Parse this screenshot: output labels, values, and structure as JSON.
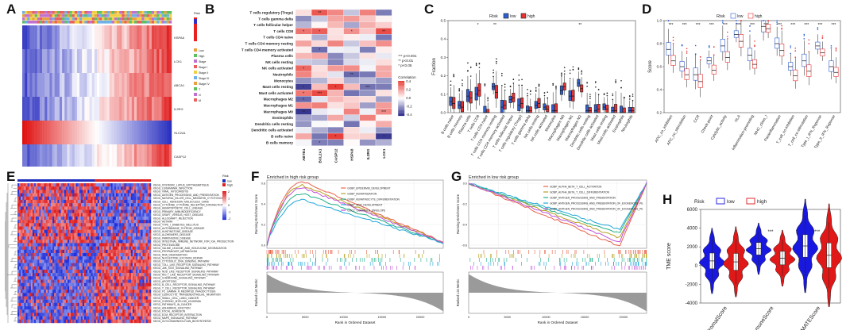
{
  "figure": {
    "panel_labels": [
      "A",
      "B",
      "C",
      "D",
      "E",
      "F",
      "G",
      "H"
    ]
  },
  "panel_a": {
    "row_labels": [
      "HSPA8",
      "LCK1",
      "ABCA1",
      "IL2RG",
      "SLC2A1",
      "CASP12"
    ],
    "legend_labels": [
      "Risk",
      "Low",
      "High",
      "Stage",
      "Stage I",
      "Stage II",
      "Stage III",
      "Stage IV",
      "T",
      "N",
      "M"
    ]
  },
  "panel_b": {
    "rows": [
      "T cells regulatory (Tregs)",
      "T cells gamma delta",
      "T cells follicular helper",
      "T cells CD8",
      "T cells CD4 naive",
      "T cells CD4 memory resting",
      "T cells CD4 memory activated",
      "Plasma cells",
      "NK cells resting",
      "NK cells activated",
      "Neutrophils",
      "Monocytes",
      "Mast cells resting",
      "Mast cells activated",
      "Macrophages M2",
      "Macrophages M1",
      "Macrophages M0",
      "Eosinophils",
      "Dendritic cells resting",
      "Dendritic cells activated",
      "B cells naive",
      "B cells memory"
    ],
    "cols": [
      "ABTB1",
      "BCL2A1",
      "CASP12",
      "HSPA8",
      "IL2RG",
      "LCK1"
    ],
    "sig_legend": [
      "*** p<0.001",
      "** p<0.01",
      "* p<0.05"
    ],
    "colorbar_title": "Correlation",
    "colorbar_ticks": [
      "0.4",
      "0.2",
      "0.0",
      "-0.2",
      "-0.4"
    ],
    "colors": {
      "pos": "#e8403a",
      "neg": "#2a2a8a",
      "mid": "#ffffff"
    }
  },
  "panel_c": {
    "legend_title": "Risk",
    "legend_items": [
      "low",
      "high"
    ],
    "ylabel": "Fraction",
    "yticks": [
      "0.0",
      "0.1",
      "0.2",
      "0.3",
      "0.4",
      "0.5"
    ],
    "categories": [
      "B cells naive",
      "B cells memory",
      "Plasma cells",
      "T cells CD8",
      "T cells CD4 naive",
      "T cells CD4 memory resting",
      "T cells CD4 memory activated",
      "T cells follicular helper",
      "T cells regulatory (Tregs)",
      "T cells gamma delta",
      "NK cells resting",
      "NK cells activated",
      "Monocytes",
      "Macrophages M0",
      "Macrophages M1",
      "Macrophages M2",
      "Dendritic cells resting",
      "Dendritic cells activated",
      "Mast cells resting",
      "Mast cells activated",
      "Eosinophils",
      "Neutrophils"
    ],
    "sig": {
      "3": "*",
      "5": "**",
      "15": "**"
    },
    "low_median": [
      0.06,
      0.04,
      0.09,
      0.1,
      0.0,
      0.14,
      0.03,
      0.07,
      0.04,
      0.01,
      0.04,
      0.03,
      0.01,
      0.12,
      0.09,
      0.16,
      0.01,
      0.01,
      0.03,
      0.01,
      0.0,
      0.01
    ],
    "high_median": [
      0.05,
      0.03,
      0.08,
      0.12,
      0.0,
      0.11,
      0.04,
      0.08,
      0.05,
      0.01,
      0.05,
      0.02,
      0.01,
      0.14,
      0.09,
      0.13,
      0.01,
      0.02,
      0.02,
      0.01,
      0.0,
      0.01
    ],
    "colors": {
      "low": "#2f5fd0",
      "high": "#e83030"
    }
  },
  "panel_d": {
    "legend_title": "Risk",
    "legend_items": [
      "low",
      "high"
    ],
    "ylabel": "Score",
    "yticks": [
      "0.2",
      "0.4",
      "0.6",
      "0.8",
      "1.0"
    ],
    "categories": [
      "APC_co_inhibition",
      "APC_co_stimulation",
      "CCR",
      "Check-point",
      "Cytolytic_activity",
      "HLA",
      "Inflammation-promoting",
      "MHC_class_I",
      "Parainflammation",
      "T_cell_co-inhibition",
      "T_cell_co-stimulation",
      "Type_I_IFN_Reponse",
      "Type_II_IFN_Reponse"
    ],
    "sig": [
      "***",
      "***",
      "***",
      "***",
      "***",
      "***",
      "***",
      "***",
      "***",
      "***",
      "***",
      "***",
      "***"
    ],
    "low_median": [
      0.75,
      0.6,
      0.53,
      0.65,
      0.78,
      0.88,
      0.7,
      0.95,
      0.8,
      0.6,
      0.65,
      0.78,
      0.6
    ],
    "high_median": [
      0.65,
      0.53,
      0.47,
      0.57,
      0.68,
      0.82,
      0.62,
      0.93,
      0.74,
      0.52,
      0.56,
      0.72,
      0.55
    ]
  },
  "panel_e": {
    "legend_title": "Risk",
    "legend_items": [
      "low",
      "high"
    ],
    "colorbar_ticks": [
      "2",
      "1",
      "0",
      "-1",
      "-2"
    ],
    "pathways": [
      "KEGG_SYSTEMIC_LUPUS_ERYTHEMATOSUS",
      "KEGG_LEISHMANIA_INFECTION",
      "KEGG_VIRAL_MYOCARDITIS",
      "KEGG_ANTIGEN_PROCESSING_AND_PRESENTATION",
      "KEGG_NATURAL_KILLER_CELL_MEDIATED_CYTOTOXICITY",
      "KEGG_CELL_ADHESION_MOLECULES_CAMS",
      "KEGG_CYTOKINE_CYTOKINE_RECEPTOR_INTERACTION",
      "KEGG_HEMATOPOIETIC_CELL_LINEAGE",
      "KEGG_PRIMARY_IMMUNODEFICIENCY",
      "KEGG_GRAFT_VERSUS_HOST_DISEASE",
      "KEGG_ALLOGRAFT_REJECTION",
      "KEGG_ASTHMA",
      "KEGG_TYPE_I_DIABETES_MELLITUS",
      "KEGG_AUTOIMMUNE_THYROID_DISEASE",
      "KEGG_HUNTINGTONS_DISEASE",
      "KEGG_ALZHEIMERS_DISEASE",
      "KEGG_PARKINSONS_DISEASE",
      "KEGG_INTESTINAL_IMMUNE_NETWORK_FOR_IGA_PRODUCTION",
      "KEGG_PROTEASOME",
      "KEGG_VALINE_LEUCINE_AND_ISOLEUCINE_DEGRADATION",
      "KEGG_PROPANOATE_METABOLISM",
      "KEGG_RNA_DEGRADATION",
      "KEGG_NUCLEOTIDE_EXCISION_REPAIR",
      "KEGG_CYTOSOLIC_DNA_SENSING_PATHWAY",
      "KEGG_TOLL_LIKE_RECEPTOR_SIGNALING_PATHWAY",
      "KEGG_JAK_STAT_SIGNALING_PATHWAY",
      "KEGG_NOD_LIKE_RECEPTOR_SIGNALING_PATHWAY",
      "KEGG_RIG_I_LIKE_RECEPTOR_SIGNALING_PATHWAY",
      "KEGG_CHEMOKINE_SIGNALING_PATHWAY",
      "KEGG_APOPTOSIS",
      "KEGG_B_CELL_RECEPTOR_SIGNALING_PATHWAY",
      "KEGG_T_CELL_RECEPTOR_SIGNALING_PATHWAY",
      "KEGG_FC_GAMMA_R_MEDIATED_PHAGOCYTOSIS",
      "KEGG_LEUKOCYTE_TRANSENDOTHELIAL_MIGRATION",
      "KEGG_SMALL_CELL_LUNG_CANCER",
      "KEGG_CHRONIC_MYELOID_LEUKEMIA",
      "KEGG_PATHWAYS_IN_CANCER",
      "KEGG_ADHERENS_JUNCTION",
      "KEGG_FOCAL_ADHESION",
      "KEGG_ECM_RECEPTOR_INTERACTION",
      "KEGG_MAPK_SIGNALING_PATHWAY",
      "KEGG_GLYCOSAMINOGLYCAN_BIOSYNTHESIS"
    ],
    "colors": {
      "red": "#e01818",
      "blue": "#1a2ad8",
      "low_bar": "#2030c0",
      "high_bar": "#e02020"
    }
  },
  "panel_f": {
    "title": "Enriched in high risk group",
    "ylabel_top": "Running Enrichment Score",
    "ylabel_bottom": "Ranked List Metric",
    "xlabel": "Rank in Ordered Dataset",
    "yticks": [
      "0.6",
      "0.4",
      "0.2",
      "0.0"
    ],
    "xticks": [
      "0",
      "5000",
      "10000",
      "15000",
      "20000"
    ],
    "legend": [
      "GOBP_EPIDERMIS_DEVELOPMENT",
      "GOBP_KERATINIZATION",
      "GOBP_KERATINOCYTE_DIFFERENTIATION",
      "GOBP_SKIN_DEVELOPMENT",
      "GOCC_CORNIFIED_ENVELOPE"
    ],
    "colors": [
      "#e8624a",
      "#b8a020",
      "#20b088",
      "#20a8d8",
      "#c050d8"
    ]
  },
  "panel_g": {
    "title": "Enriched in low risk group",
    "ylabel_top": "Running Enrichment Score",
    "ylabel_bottom": "Ranked List Metric",
    "xlabel": "Rank in Ordered Dataset",
    "yticks": [
      "0.0",
      "-0.2",
      "-0.4",
      "-0.6"
    ],
    "xticks": [
      "0",
      "5000",
      "10000",
      "15000",
      "20000"
    ],
    "legend": [
      "GOBP_ALPHA_BETA_T_CELL_ACTIVATION",
      "GOBP_ALPHA_BETA_T_CELL_DIFFERENTIATION",
      "GOBP_ANTIGEN_PROCESSING_AND_PRESENTATION",
      "GOBP_ANTIGEN_PROCESSING_AND_PRESENTATION_OF_EXOGENOUS_PE",
      "GOBP_ANTIGEN_PROCESSING_AND_PRESENTATION_OF_EXOGENOUS_PE"
    ],
    "colors": [
      "#e8624a",
      "#b8a020",
      "#20b088",
      "#20a8d8",
      "#c050d8"
    ]
  },
  "panel_h": {
    "legend_title": "Risk",
    "legend_items": [
      "low",
      "high"
    ],
    "ylabel": "TME score",
    "yticks": [
      "6000",
      "4000",
      "2000",
      "0",
      "-2000",
      "-4000"
    ],
    "categories": [
      "StromalScore",
      "ImmuneScore",
      "ESTIMATEScore"
    ],
    "sig": [
      "",
      "***",
      "***"
    ],
    "colors": {
      "low": "#1818e0",
      "high": "#e01818"
    }
  },
  "chart_data": [
    {
      "type": "bar",
      "title": "C",
      "ylabel": "Fraction",
      "ylim": [
        0,
        0.5
      ],
      "categories": [
        "B cells naive",
        "B cells memory",
        "Plasma cells",
        "T cells CD8",
        "T cells CD4 naive",
        "T cells CD4 memory resting",
        "T cells CD4 memory activated",
        "T cells follicular helper",
        "T cells regulatory (Tregs)",
        "T cells gamma delta",
        "NK cells resting",
        "NK cells activated",
        "Monocytes",
        "Macrophages M0",
        "Macrophages M1",
        "Macrophages M2",
        "Dendritic cells resting",
        "Dendritic cells activated",
        "Mast cells resting",
        "Mast cells activated",
        "Eosinophils",
        "Neutrophils"
      ],
      "series": [
        {
          "name": "low",
          "values": [
            0.06,
            0.04,
            0.09,
            0.1,
            0.0,
            0.14,
            0.03,
            0.07,
            0.04,
            0.01,
            0.04,
            0.03,
            0.01,
            0.12,
            0.09,
            0.16,
            0.01,
            0.01,
            0.03,
            0.01,
            0.0,
            0.01
          ]
        },
        {
          "name": "high",
          "values": [
            0.05,
            0.03,
            0.08,
            0.12,
            0.0,
            0.11,
            0.04,
            0.08,
            0.05,
            0.01,
            0.05,
            0.02,
            0.01,
            0.14,
            0.09,
            0.13,
            0.01,
            0.02,
            0.02,
            0.01,
            0.0,
            0.01
          ]
        }
      ]
    },
    {
      "type": "bar",
      "title": "D",
      "ylabel": "Score",
      "ylim": [
        0.2,
        1.0
      ],
      "categories": [
        "APC_co_inhibition",
        "APC_co_stimulation",
        "CCR",
        "Check-point",
        "Cytolytic_activity",
        "HLA",
        "Inflammation-promoting",
        "MHC_class_I",
        "Parainflammation",
        "T_cell_co-inhibition",
        "T_cell_co-stimulation",
        "Type_I_IFN_Reponse",
        "Type_II_IFN_Reponse"
      ],
      "series": [
        {
          "name": "low",
          "values": [
            0.75,
            0.6,
            0.53,
            0.65,
            0.78,
            0.88,
            0.7,
            0.95,
            0.8,
            0.6,
            0.65,
            0.78,
            0.6
          ]
        },
        {
          "name": "high",
          "values": [
            0.65,
            0.53,
            0.47,
            0.57,
            0.68,
            0.82,
            0.62,
            0.93,
            0.74,
            0.52,
            0.56,
            0.72,
            0.55
          ]
        }
      ]
    },
    {
      "type": "bar",
      "title": "H",
      "ylabel": "TME score",
      "ylim": [
        -4000,
        6000
      ],
      "categories": [
        "StromalScore",
        "ImmuneScore",
        "ESTIMATEScore"
      ],
      "series": [
        {
          "name": "low",
          "values": [
            500,
            1800,
            2100
          ]
        },
        {
          "name": "high",
          "values": [
            400,
            800,
            1100
          ]
        }
      ]
    }
  ]
}
